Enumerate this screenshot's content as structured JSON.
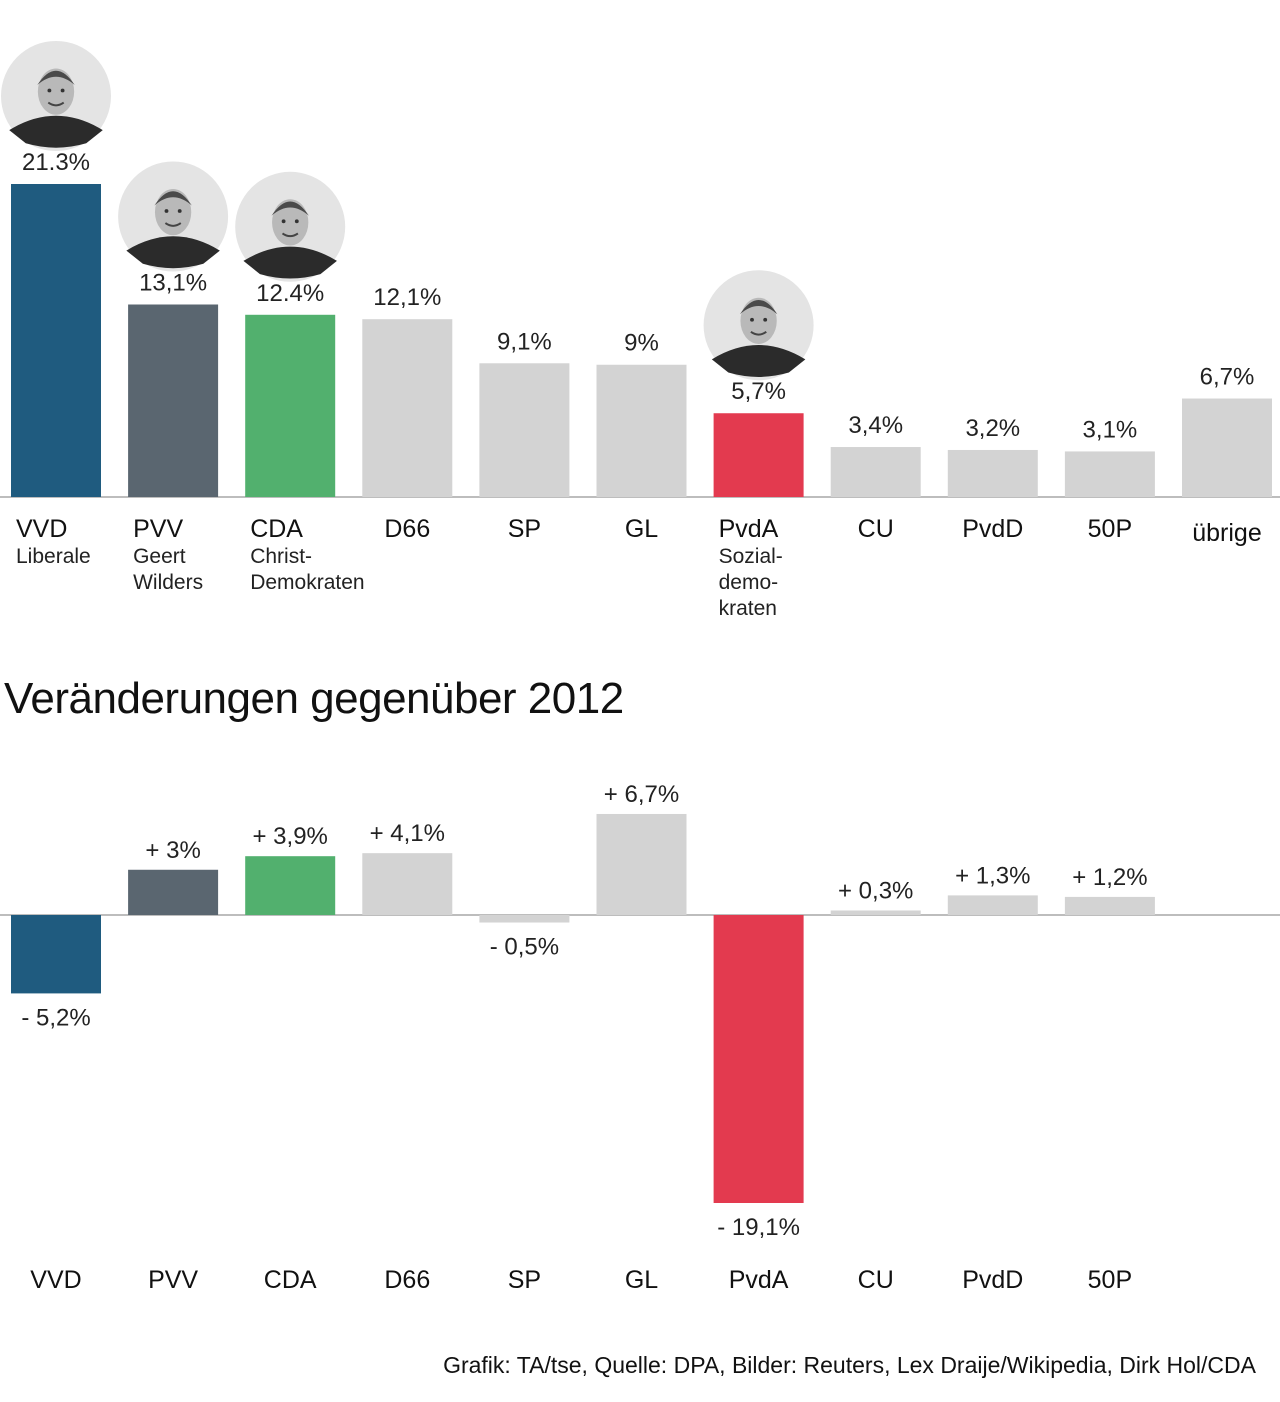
{
  "chart_data": [
    {
      "type": "bar",
      "categories": [
        "VVD",
        "PVV",
        "CDA",
        "D66",
        "SP",
        "GL",
        "PvdA",
        "CU",
        "PvdD",
        "50P",
        "übrige"
      ],
      "subtitles": [
        "Liberale",
        "Geert Wilders",
        "Christ-Demokraten",
        "",
        "",
        "",
        "Sozial-demo-kraten",
        "",
        "",
        "",
        ""
      ],
      "subtitle_lines": [
        [
          "Liberale"
        ],
        [
          "Geert",
          "Wilders"
        ],
        [
          "Christ-",
          "Demokraten"
        ],
        [],
        [],
        [],
        [
          "Sozial-",
          "demo-",
          "kraten"
        ],
        [],
        [],
        [],
        []
      ],
      "values": [
        21.3,
        13.1,
        12.4,
        12.1,
        9.1,
        9.0,
        5.7,
        3.4,
        3.2,
        3.1,
        6.7
      ],
      "labels": [
        "21.3%",
        "13,1%",
        "12.4%",
        "12,1%",
        "9,1%",
        "9%",
        "5,7%",
        "3,4%",
        "3,2%",
        "3,1%",
        "6,7%"
      ],
      "colors": [
        "#1f5b7f",
        "#5a6670",
        "#52b06e",
        "#d3d3d3",
        "#d3d3d3",
        "#d3d3d3",
        "#e33a4f",
        "#d3d3d3",
        "#d3d3d3",
        "#d3d3d3",
        "#d3d3d3"
      ],
      "portraits": [
        "VVD",
        "PVV",
        "CDA",
        "PvdA"
      ],
      "ylim": [
        0,
        21.3
      ],
      "grid": false
    },
    {
      "type": "bar",
      "title": "Veränderungen gegenüber 2012",
      "categories": [
        "VVD",
        "PVV",
        "CDA",
        "D66",
        "SP",
        "GL",
        "PvdA",
        "CU",
        "PvdD",
        "50P"
      ],
      "values": [
        -5.2,
        3.0,
        3.9,
        4.1,
        -0.5,
        6.7,
        -19.1,
        0.3,
        1.3,
        1.2
      ],
      "labels": [
        "- 5,2%",
        "+ 3%",
        "+ 3,9%",
        "+ 4,1%",
        "- 0,5%",
        "+ 6,7%",
        "- 19,1%",
        "+ 0,3%",
        "+ 1,3%",
        "+ 1,2%"
      ],
      "colors": [
        "#1f5b7f",
        "#5a6670",
        "#52b06e",
        "#d3d3d3",
        "#d3d3d3",
        "#d3d3d3",
        "#e33a4f",
        "#d3d3d3",
        "#d3d3d3",
        "#d3d3d3"
      ],
      "ylim": [
        -19.1,
        6.7
      ],
      "grid": false
    }
  ],
  "source": "Grafik: TA/tse, Quelle: DPA, Bilder: Reuters, Lex Draije/Wikipedia, Dirk Hol/CDA"
}
